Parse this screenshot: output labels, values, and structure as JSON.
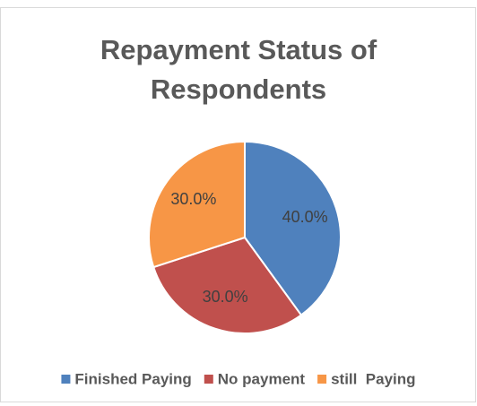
{
  "chart_data": {
    "type": "pie",
    "title": "Repayment Status of Respondents",
    "categories": [
      "Finished Paying",
      "No payment",
      "still  Paying"
    ],
    "values": [
      40,
      30,
      30
    ],
    "value_labels": [
      "40.0%",
      "30.0%",
      "30.0%"
    ],
    "colors": [
      "#4f81bd",
      "#c0504d",
      "#f79646"
    ],
    "legend": "bottom"
  }
}
